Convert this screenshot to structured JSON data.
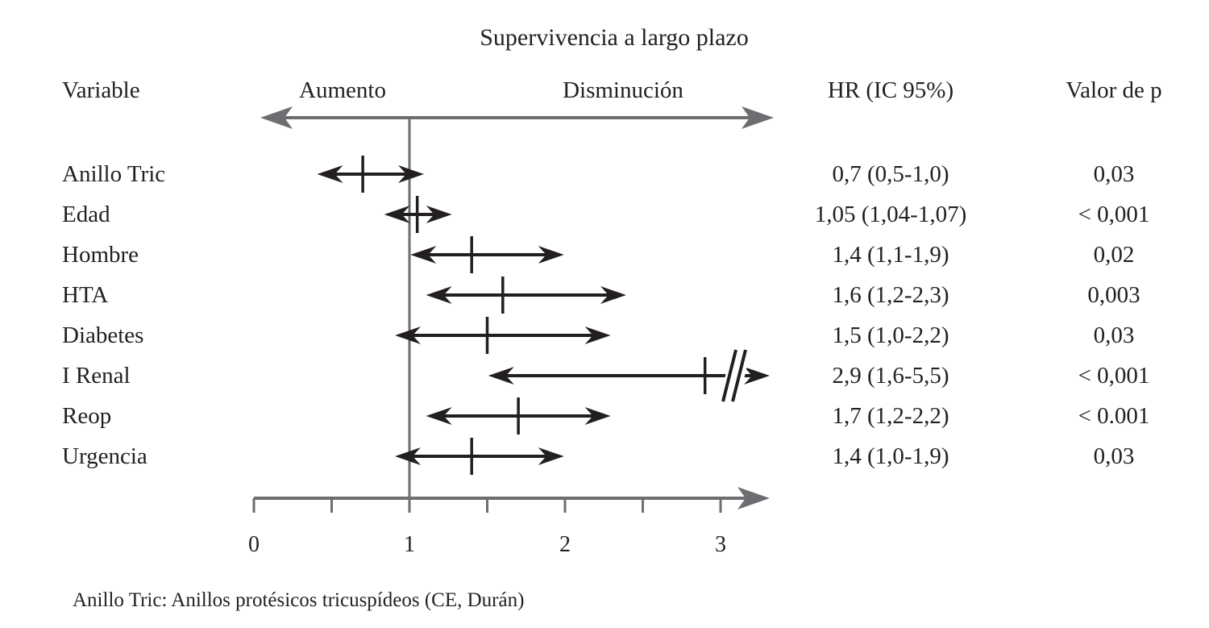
{
  "chart_data": {
    "type": "forest",
    "title": "Supervivencia a largo plazo",
    "headers": {
      "variable": "Variable",
      "hr": "HR (IC 95%)",
      "p": "Valor de p"
    },
    "direction_labels": {
      "left": "Aumento",
      "right": "Disminución"
    },
    "reference_value": 1,
    "x_axis": {
      "min": 0,
      "max": 3.25,
      "major_ticks": [
        0,
        1,
        2,
        3
      ],
      "tick_labels": [
        "0",
        "1",
        "2",
        "3"
      ],
      "minor_ticks": [
        0.5,
        1.5,
        2.5
      ]
    },
    "rows": [
      {
        "variable": "Anillo Tric",
        "hr": 0.7,
        "lo": 0.5,
        "hi": 1.0,
        "hr_text": "0,7 (0,5-1,0)",
        "p_text": "0,03"
      },
      {
        "variable": "Edad",
        "hr": 1.05,
        "lo": 1.04,
        "hi": 1.07,
        "hr_text": "1,05 (1,04-1,07)",
        "p_text": "< 0,001"
      },
      {
        "variable": "Hombre",
        "hr": 1.4,
        "lo": 1.1,
        "hi": 1.9,
        "hr_text": "1,4 (1,1-1,9)",
        "p_text": "0,02"
      },
      {
        "variable": "HTA",
        "hr": 1.6,
        "lo": 1.2,
        "hi": 2.3,
        "hr_text": "1,6 (1,2-2,3)",
        "p_text": "0,003"
      },
      {
        "variable": "Diabetes",
        "hr": 1.5,
        "lo": 1.0,
        "hi": 2.2,
        "hr_text": "1,5 (1,0-2,2)",
        "p_text": "0,03"
      },
      {
        "variable": "I Renal",
        "hr": 2.9,
        "lo": 1.6,
        "hi": 5.5,
        "hr_text": "2,9 (1,6-5,5)",
        "p_text": "< 0,001",
        "truncated": true
      },
      {
        "variable": "Reop",
        "hr": 1.7,
        "lo": 1.2,
        "hi": 2.2,
        "hr_text": "1,7 (1,2-2,2)",
        "p_text": "< 0.001"
      },
      {
        "variable": "Urgencia",
        "hr": 1.4,
        "lo": 1.0,
        "hi": 1.9,
        "hr_text": "1,4 (1,0-1,9)",
        "p_text": "0,03"
      }
    ],
    "footnote": "Anillo Tric: Anillos protésicos tricuspídeos (CE, Durán)",
    "colors": {
      "interval": "#231f20",
      "axis": "#6d6e71"
    }
  }
}
